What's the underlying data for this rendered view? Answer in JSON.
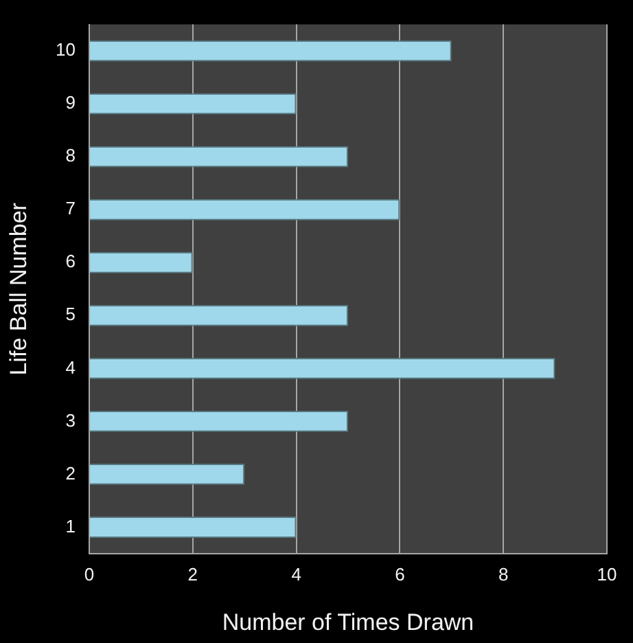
{
  "chart_data": {
    "type": "bar",
    "orientation": "horizontal",
    "categories": [
      "10",
      "9",
      "8",
      "7",
      "6",
      "5",
      "4",
      "3",
      "2",
      "1"
    ],
    "values": [
      7,
      4,
      5,
      6,
      2,
      5,
      9,
      5,
      3,
      4
    ],
    "color": "#9fd8ea",
    "xlabel": "Number of Times Drawn",
    "ylabel": "Life Ball Number",
    "xlim": [
      0,
      10
    ],
    "xticks": [
      0,
      2,
      4,
      6,
      8,
      10
    ],
    "grid": "x"
  }
}
